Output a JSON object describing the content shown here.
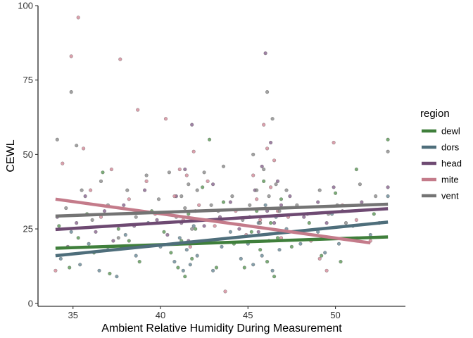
{
  "chart_data": {
    "type": "scatter",
    "title": "",
    "xlabel": "Ambient Relative Humidity During Measurement",
    "ylabel": "CEWL",
    "xlim": [
      33.0,
      54.0
    ],
    "ylim": [
      -1.0,
      100.0
    ],
    "x_ticks": [
      35,
      40,
      45,
      50
    ],
    "y_ticks": [
      0,
      25,
      50,
      75,
      100
    ],
    "grid": false,
    "legend": {
      "title": "region",
      "position": "right"
    },
    "series": [
      {
        "name": "dewl",
        "color": "#3F7F3B",
        "point_color": "#5E9A59",
        "trend": {
          "x": [
            34,
            53
          ],
          "y": [
            18.5,
            22.3
          ]
        },
        "points": [
          [
            34.2,
            26
          ],
          [
            34.8,
            12
          ],
          [
            35.3,
            22
          ],
          [
            35.8,
            30
          ],
          [
            36.2,
            17
          ],
          [
            36.7,
            44
          ],
          [
            37.1,
            10
          ],
          [
            37.6,
            25
          ],
          [
            38.2,
            21
          ],
          [
            38.8,
            14
          ],
          [
            39.5,
            31
          ],
          [
            40.2,
            24
          ],
          [
            40.6,
            17
          ],
          [
            41.0,
            12
          ],
          [
            41.2,
            21
          ],
          [
            41.4,
            9
          ],
          [
            41.6,
            30
          ],
          [
            41.8,
            15
          ],
          [
            42.0,
            25
          ],
          [
            42.4,
            39
          ],
          [
            42.8,
            55
          ],
          [
            43.2,
            12
          ],
          [
            43.6,
            34
          ],
          [
            44.2,
            20
          ],
          [
            44.8,
            12
          ],
          [
            45.2,
            24
          ],
          [
            45.5,
            31
          ],
          [
            45.7,
            18
          ],
          [
            45.9,
            41
          ],
          [
            46.1,
            14
          ],
          [
            46.3,
            27
          ],
          [
            46.5,
            9
          ],
          [
            46.7,
            22
          ],
          [
            46.9,
            35
          ],
          [
            47.5,
            19
          ],
          [
            48.5,
            27
          ],
          [
            49.2,
            16
          ],
          [
            49.6,
            22
          ],
          [
            50.0,
            37
          ],
          [
            50.3,
            14
          ],
          [
            51.2,
            45
          ],
          [
            52.2,
            30
          ],
          [
            53.0,
            55
          ]
        ]
      },
      {
        "name": "dors",
        "color": "#4E6E7B",
        "point_color": "#6B8B98",
        "trend": {
          "x": [
            34,
            53
          ],
          "y": [
            16,
            27.3
          ]
        },
        "points": [
          [
            34.3,
            15
          ],
          [
            34.9,
            24
          ],
          [
            35.4,
            13
          ],
          [
            35.9,
            20
          ],
          [
            36.5,
            11
          ],
          [
            37.0,
            18
          ],
          [
            37.5,
            9
          ],
          [
            38.0,
            23
          ],
          [
            38.6,
            16
          ],
          [
            39.3,
            27
          ],
          [
            40.0,
            19
          ],
          [
            40.8,
            14
          ],
          [
            41.1,
            22
          ],
          [
            41.3,
            11
          ],
          [
            41.5,
            18
          ],
          [
            41.7,
            13
          ],
          [
            41.9,
            26
          ],
          [
            42.1,
            16
          ],
          [
            42.6,
            21
          ],
          [
            43.0,
            11
          ],
          [
            43.5,
            19
          ],
          [
            44.0,
            24
          ],
          [
            44.6,
            15
          ],
          [
            45.0,
            20
          ],
          [
            45.3,
            13
          ],
          [
            45.6,
            27
          ],
          [
            45.8,
            16
          ],
          [
            46.0,
            33
          ],
          [
            46.2,
            21
          ],
          [
            46.4,
            11
          ],
          [
            46.6,
            29
          ],
          [
            46.8,
            18
          ],
          [
            47.2,
            25
          ],
          [
            48.0,
            20
          ],
          [
            49.0,
            24
          ],
          [
            49.4,
            17
          ],
          [
            49.8,
            30
          ],
          [
            50.2,
            20
          ],
          [
            51.0,
            26
          ],
          [
            52.0,
            23
          ],
          [
            53.0,
            36
          ]
        ]
      },
      {
        "name": "head",
        "color": "#6E4A72",
        "point_color": "#8A6690",
        "trend": {
          "x": [
            34,
            53
          ],
          "y": [
            24.8,
            31.8
          ]
        },
        "points": [
          [
            34.1,
            29
          ],
          [
            34.7,
            19
          ],
          [
            35.2,
            27
          ],
          [
            35.7,
            36
          ],
          [
            36.3,
            24
          ],
          [
            36.8,
            31
          ],
          [
            37.3,
            21
          ],
          [
            37.9,
            33
          ],
          [
            38.5,
            26
          ],
          [
            39.1,
            38
          ],
          [
            39.8,
            28
          ],
          [
            40.4,
            23
          ],
          [
            40.9,
            36
          ],
          [
            41.2,
            27
          ],
          [
            41.4,
            45
          ],
          [
            41.6,
            21
          ],
          [
            41.8,
            60
          ],
          [
            42.0,
            31
          ],
          [
            42.5,
            26
          ],
          [
            43.0,
            40
          ],
          [
            43.4,
            29
          ],
          [
            44.0,
            34
          ],
          [
            44.5,
            25
          ],
          [
            45.1,
            29
          ],
          [
            45.4,
            38
          ],
          [
            45.6,
            24
          ],
          [
            45.8,
            46
          ],
          [
            46.0,
            84
          ],
          [
            46.1,
            31
          ],
          [
            46.3,
            54
          ],
          [
            46.5,
            27
          ],
          [
            46.7,
            41
          ],
          [
            46.9,
            33
          ],
          [
            47.4,
            36
          ],
          [
            48.2,
            29
          ],
          [
            49.0,
            34
          ],
          [
            49.5,
            27
          ],
          [
            49.9,
            39
          ],
          [
            50.4,
            31
          ],
          [
            51.5,
            34
          ],
          [
            52.5,
            27
          ],
          [
            53.0,
            39
          ]
        ]
      },
      {
        "name": "mite",
        "color": "#C47B8A",
        "point_color": "#D48C9B",
        "trend": {
          "x": [
            34,
            52
          ],
          "y": [
            35,
            20.3
          ]
        },
        "points": [
          [
            34.0,
            11
          ],
          [
            34.4,
            47
          ],
          [
            34.9,
            83
          ],
          [
            35.3,
            96
          ],
          [
            35.6,
            52
          ],
          [
            36.0,
            38
          ],
          [
            36.6,
            29
          ],
          [
            37.2,
            45
          ],
          [
            37.7,
            82
          ],
          [
            38.2,
            35
          ],
          [
            38.7,
            65
          ],
          [
            39.2,
            41
          ],
          [
            39.7,
            30
          ],
          [
            40.3,
            62
          ],
          [
            40.8,
            36
          ],
          [
            41.1,
            45
          ],
          [
            41.3,
            28
          ],
          [
            41.5,
            43
          ],
          [
            41.7,
            19
          ],
          [
            41.9,
            51
          ],
          [
            42.2,
            33
          ],
          [
            42.7,
            41
          ],
          [
            43.1,
            26
          ],
          [
            43.7,
            4
          ],
          [
            44.3,
            31
          ],
          [
            44.9,
            23
          ],
          [
            45.3,
            43
          ],
          [
            45.5,
            35
          ],
          [
            45.7,
            28
          ],
          [
            45.9,
            60
          ],
          [
            46.1,
            52
          ],
          [
            46.3,
            39
          ],
          [
            46.5,
            48
          ],
          [
            46.7,
            31
          ],
          [
            46.9,
            22
          ],
          [
            47.3,
            29
          ],
          [
            47.9,
            24
          ],
          [
            48.6,
            21
          ],
          [
            49.1,
            15
          ],
          [
            49.5,
            11
          ],
          [
            49.9,
            54
          ],
          [
            50.4,
            33
          ],
          [
            51.2,
            28
          ],
          [
            52.0,
            21
          ]
        ]
      },
      {
        "name": "vent",
        "color": "#747474",
        "point_color": "#8E8E8E",
        "trend": {
          "x": [
            34,
            53
          ],
          "y": [
            29.3,
            33.3
          ]
        },
        "points": [
          [
            34.1,
            55
          ],
          [
            34.6,
            32
          ],
          [
            34.9,
            71
          ],
          [
            35.2,
            53
          ],
          [
            35.5,
            38
          ],
          [
            36.1,
            28
          ],
          [
            36.6,
            41
          ],
          [
            37.0,
            33
          ],
          [
            37.6,
            22
          ],
          [
            38.1,
            38
          ],
          [
            38.6,
            29
          ],
          [
            39.2,
            43
          ],
          [
            39.9,
            35
          ],
          [
            40.5,
            44
          ],
          [
            40.9,
            29
          ],
          [
            41.2,
            36
          ],
          [
            41.4,
            32
          ],
          [
            41.6,
            40
          ],
          [
            41.8,
            25
          ],
          [
            42.1,
            38
          ],
          [
            42.5,
            44
          ],
          [
            42.9,
            33
          ],
          [
            43.3,
            31
          ],
          [
            43.6,
            46
          ],
          [
            44.1,
            36
          ],
          [
            44.7,
            28
          ],
          [
            45.1,
            33
          ],
          [
            45.3,
            50
          ],
          [
            45.5,
            38
          ],
          [
            45.7,
            27
          ],
          [
            45.9,
            45
          ],
          [
            46.1,
            71
          ],
          [
            46.2,
            36
          ],
          [
            46.4,
            62
          ],
          [
            46.6,
            40
          ],
          [
            46.8,
            31
          ],
          [
            47.2,
            38
          ],
          [
            47.8,
            33
          ],
          [
            48.4,
            30
          ],
          [
            49.1,
            38
          ],
          [
            49.6,
            30
          ],
          [
            50.1,
            33
          ],
          [
            50.6,
            27
          ],
          [
            51.4,
            40
          ],
          [
            52.3,
            36
          ],
          [
            53.0,
            51
          ]
        ]
      }
    ]
  }
}
